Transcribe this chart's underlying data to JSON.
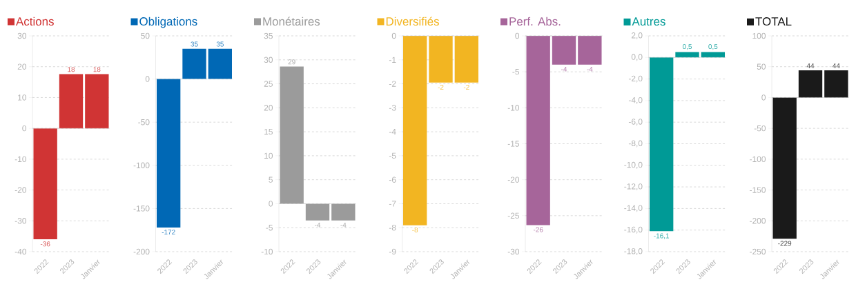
{
  "chart_data": [
    {
      "type": "bar",
      "categories": [
        "2022",
        "2023",
        "Janvier"
      ],
      "series": [
        {
          "name": "Actions",
          "color": "#d03434",
          "values": [
            -36,
            17.6,
            17.6
          ],
          "value_labels": [
            "-36",
            "18",
            "18"
          ]
        }
      ],
      "ylim": [
        -40,
        30
      ],
      "yticks": [
        -40,
        -30,
        -20,
        -10,
        0,
        10,
        20,
        30
      ],
      "grid": "y",
      "legend": "top left"
    },
    {
      "type": "bar",
      "categories": [
        "2022",
        "2023",
        "Janvier"
      ],
      "series": [
        {
          "name": "Obligations",
          "color": "#0068b5",
          "values": [
            -172,
            35,
            35
          ],
          "value_labels": [
            "-172",
            "35",
            "35"
          ]
        }
      ],
      "ylim": [
        -200,
        50
      ],
      "yticks": [
        -200,
        -150,
        -100,
        -50,
        0,
        50
      ],
      "grid": "y",
      "legend": "top left"
    },
    {
      "type": "bar",
      "categories": [
        "2022",
        "2023",
        "Janvier"
      ],
      "series": [
        {
          "name": "Monétaires",
          "color": "#9b9b9b",
          "values": [
            28.6,
            -3.5,
            -3.5
          ],
          "value_labels": [
            "29",
            "-4",
            "-4"
          ]
        }
      ],
      "ylim": [
        -10,
        35
      ],
      "yticks": [
        -10,
        -5,
        0,
        5,
        10,
        15,
        20,
        25,
        30,
        35
      ],
      "grid": "y",
      "legend": "top left"
    },
    {
      "type": "bar",
      "categories": [
        "2022",
        "2023",
        "Janvier"
      ],
      "series": [
        {
          "name": "Diversifiés",
          "color": "#f2b522",
          "values": [
            -7.9,
            -1.95,
            -1.95
          ],
          "value_labels": [
            "-8",
            "-2",
            "-2"
          ]
        }
      ],
      "ylim": [
        -9,
        0
      ],
      "yticks": [
        -9,
        -8,
        -7,
        -6,
        -5,
        -4,
        -3,
        -2,
        -1,
        0
      ],
      "grid": "y",
      "legend": "top left"
    },
    {
      "type": "bar",
      "categories": [
        "2022",
        "2023",
        "Janvier"
      ],
      "series": [
        {
          "name": "Perf. Abs.",
          "color": "#a6659a",
          "values": [
            -26.3,
            -4,
            -4
          ],
          "value_labels": [
            "-26",
            "-4",
            "-4"
          ]
        }
      ],
      "ylim": [
        -30,
        0
      ],
      "yticks": [
        -30,
        -25,
        -20,
        -15,
        -10,
        -5,
        0
      ],
      "grid": "y",
      "legend": "top left"
    },
    {
      "type": "bar",
      "categories": [
        "2022",
        "2023",
        "Janvier"
      ],
      "series": [
        {
          "name": "Autres",
          "color": "#009a96",
          "values": [
            -16.1,
            0.5,
            0.5
          ],
          "value_labels": [
            "-16,1",
            "0,5",
            "0,5"
          ]
        }
      ],
      "ylim": [
        -18,
        2
      ],
      "yticks": [
        {
          "value": -18,
          "label": "-18,0"
        },
        {
          "value": -16,
          "label": "-16,0"
        },
        {
          "value": -14,
          "label": "-14,0"
        },
        {
          "value": -12,
          "label": "-12,0"
        },
        {
          "value": -10,
          "label": "-10,0"
        },
        {
          "value": -8,
          "label": "-8,0"
        },
        {
          "value": -6,
          "label": "-6,0"
        },
        {
          "value": -4,
          "label": "-4,0"
        },
        {
          "value": -2,
          "label": "-2,0"
        },
        {
          "value": 0,
          "label": "0,0"
        },
        {
          "value": 2,
          "label": "2,0"
        }
      ],
      "grid": "y",
      "legend": "top left"
    },
    {
      "type": "bar",
      "categories": [
        "2022",
        "2023",
        "Janvier"
      ],
      "series": [
        {
          "name": "TOTAL",
          "color": "#1a1a1a",
          "values": [
            -229,
            44,
            44
          ],
          "value_labels": [
            "-229",
            "44",
            "44"
          ]
        }
      ],
      "ylim": [
        -250,
        100
      ],
      "yticks": [
        -250,
        -200,
        -150,
        -100,
        -50,
        0,
        50,
        100
      ],
      "grid": "y",
      "legend": "top left"
    }
  ]
}
